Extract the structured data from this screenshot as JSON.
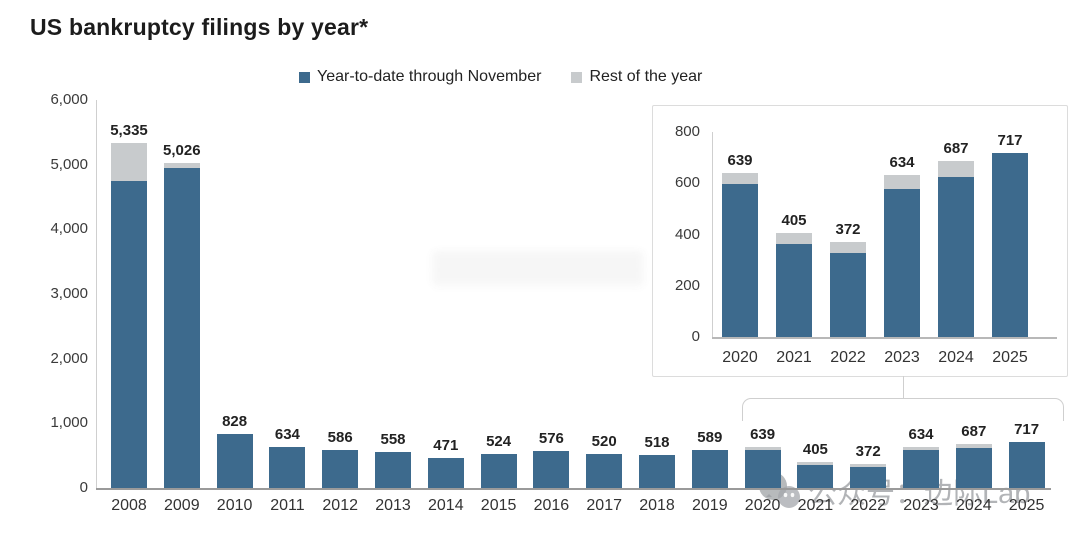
{
  "title": "US bankruptcy filings by year*",
  "legend": {
    "items": [
      {
        "label": "Year-to-date through November",
        "color": "#3d6a8d"
      },
      {
        "label": "Rest of the year",
        "color": "#c8cbcd"
      }
    ]
  },
  "colors": {
    "bar_blue": "#3d6a8d",
    "bar_gray": "#c8cbcd",
    "axis_line": "#cfcfcf",
    "main_baseline": "#9a9a9a",
    "inset_baseline": "#b8b8b8",
    "label_text": "#222222"
  },
  "watermark": {
    "icon": "wechat-icon",
    "text": "公众号：边际Lab"
  },
  "chart_data": [
    {
      "name": "main",
      "type": "bar",
      "stacked": true,
      "title": "US bankruptcy filings by year*",
      "xlabel": "",
      "ylabel": "",
      "ylim": [
        0,
        6000
      ],
      "ytick_step": 1000,
      "yticks": [
        "0",
        "1,000",
        "2,000",
        "3,000",
        "4,000",
        "5,000",
        "6,000"
      ],
      "grid": false,
      "legend_position": "top",
      "categories": [
        "2008",
        "2009",
        "2010",
        "2011",
        "2012",
        "2013",
        "2014",
        "2015",
        "2016",
        "2017",
        "2018",
        "2019",
        "2020",
        "2021",
        "2022",
        "2023",
        "2024",
        "2025"
      ],
      "series": [
        {
          "name": "Year-to-date through November",
          "values": [
            4750,
            4950,
            828,
            634,
            586,
            558,
            471,
            524,
            576,
            520,
            518,
            589,
            595,
            363,
            330,
            580,
            625,
            717
          ]
        },
        {
          "name": "Rest of the year",
          "values": [
            585,
            76,
            0,
            0,
            0,
            0,
            0,
            0,
            0,
            0,
            0,
            0,
            44,
            42,
            42,
            54,
            62,
            0
          ]
        }
      ],
      "totals": [
        5335,
        5026,
        828,
        634,
        586,
        558,
        471,
        524,
        576,
        520,
        518,
        589,
        639,
        405,
        372,
        634,
        687,
        717
      ],
      "labels": [
        "5,335",
        "5,026",
        "828",
        "634",
        "586",
        "558",
        "471",
        "524",
        "576",
        "520",
        "518",
        "589",
        "639",
        "405",
        "372",
        "634",
        "687",
        "717"
      ]
    },
    {
      "name": "inset",
      "type": "bar",
      "stacked": true,
      "title": "",
      "ylim": [
        0,
        800
      ],
      "ytick_step": 200,
      "yticks": [
        "0",
        "200",
        "400",
        "600",
        "800"
      ],
      "grid": false,
      "categories": [
        "2020",
        "2021",
        "2022",
        "2023",
        "2024",
        "2025"
      ],
      "series": [
        {
          "name": "Year-to-date through November",
          "values": [
            595,
            363,
            330,
            580,
            625,
            717
          ]
        },
        {
          "name": "Rest of the year",
          "values": [
            44,
            42,
            42,
            54,
            62,
            0
          ]
        }
      ],
      "totals": [
        639,
        405,
        372,
        634,
        687,
        717
      ],
      "labels": [
        "639",
        "405",
        "372",
        "634",
        "687",
        "717"
      ]
    }
  ]
}
